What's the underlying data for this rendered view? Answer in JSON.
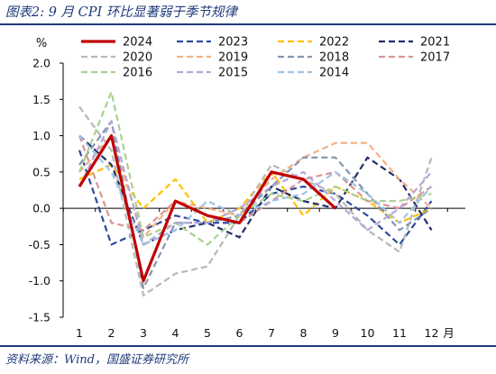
{
  "figure": {
    "title": "图表2:  9 月 CPI 环比显著弱于季节规律",
    "source": "资料来源：Wind，国盛证券研究所"
  },
  "chart_data": {
    "type": "line",
    "unit_label": "%",
    "x_unit_label": "月",
    "x": [
      1,
      2,
      3,
      4,
      5,
      6,
      7,
      8,
      9,
      10,
      11,
      12
    ],
    "x_tick_labels": [
      "1",
      "2",
      "3",
      "4",
      "5",
      "6",
      "7",
      "8",
      "9",
      "10",
      "11",
      "12"
    ],
    "ylim": [
      -1.5,
      2.0
    ],
    "y_ticks": [
      2.0,
      1.5,
      1.0,
      0.5,
      0.0,
      -0.5,
      -1.0,
      -1.5
    ],
    "y_tick_labels": [
      "2.0",
      "1.5",
      "1.0",
      "0.5",
      "0.0",
      "-0.5",
      "-1.0",
      "-1.5"
    ],
    "grid": false,
    "legend_position": "top",
    "series": [
      {
        "name": "2024",
        "color": "#c00000",
        "dashed": false,
        "width": 3.2,
        "values": [
          0.3,
          1.0,
          -1.0,
          0.1,
          -0.1,
          -0.2,
          0.5,
          0.4,
          0.0,
          null,
          null,
          null
        ]
      },
      {
        "name": "2023",
        "color": "#2e4a9e",
        "dashed": true,
        "width": 2.2,
        "values": [
          0.8,
          -0.5,
          -0.3,
          -0.1,
          -0.2,
          -0.2,
          0.2,
          0.3,
          0.2,
          -0.1,
          -0.5,
          0.1
        ]
      },
      {
        "name": "2022",
        "color": "#ffc000",
        "dashed": true,
        "width": 2.2,
        "values": [
          0.4,
          0.6,
          0.0,
          0.4,
          -0.2,
          0.0,
          0.5,
          -0.1,
          0.3,
          0.1,
          -0.2,
          0.0
        ]
      },
      {
        "name": "2021",
        "color": "#1f2d6b",
        "dashed": true,
        "width": 2.2,
        "values": [
          1.0,
          0.6,
          -0.5,
          -0.3,
          -0.2,
          -0.4,
          0.3,
          0.1,
          0.0,
          0.7,
          0.4,
          -0.3
        ]
      },
      {
        "name": "2020",
        "color": "#b8b8b8",
        "dashed": true,
        "width": 2.2,
        "values": [
          1.4,
          0.8,
          -1.2,
          -0.9,
          -0.8,
          -0.1,
          0.6,
          0.4,
          0.2,
          -0.3,
          -0.6,
          0.7
        ]
      },
      {
        "name": "2019",
        "color": "#f4b183",
        "dashed": true,
        "width": 2.2,
        "values": [
          0.5,
          1.0,
          -0.4,
          0.1,
          0.0,
          -0.1,
          0.4,
          0.7,
          0.9,
          0.9,
          0.4,
          0.0
        ]
      },
      {
        "name": "2018",
        "color": "#8496b0",
        "dashed": true,
        "width": 2.2,
        "values": [
          0.6,
          1.2,
          -1.1,
          -0.2,
          -0.2,
          -0.1,
          0.3,
          0.7,
          0.7,
          0.2,
          -0.3,
          0.0
        ]
      },
      {
        "name": "2017",
        "color": "#d99594",
        "dashed": true,
        "width": 2.2,
        "values": [
          1.0,
          -0.2,
          -0.3,
          0.1,
          -0.1,
          -0.2,
          0.1,
          0.4,
          0.5,
          0.1,
          0.0,
          0.3
        ]
      },
      {
        "name": "2016",
        "color": "#a9d18e",
        "dashed": true,
        "width": 2.2,
        "values": [
          0.5,
          1.6,
          -0.4,
          -0.2,
          -0.5,
          -0.1,
          0.2,
          0.1,
          0.3,
          0.1,
          0.1,
          0.2
        ]
      },
      {
        "name": "2015",
        "color": "#b4a7d6",
        "dashed": true,
        "width": 2.2,
        "values": [
          0.3,
          1.2,
          -0.5,
          -0.2,
          -0.2,
          0.0,
          0.3,
          0.5,
          0.1,
          -0.3,
          0.0,
          0.5
        ]
      },
      {
        "name": "2014",
        "color": "#9dc3e6",
        "dashed": true,
        "width": 2.2,
        "values": [
          1.0,
          0.5,
          -0.5,
          -0.3,
          0.1,
          -0.1,
          0.1,
          0.2,
          0.5,
          0.2,
          -0.2,
          0.3
        ]
      }
    ]
  }
}
